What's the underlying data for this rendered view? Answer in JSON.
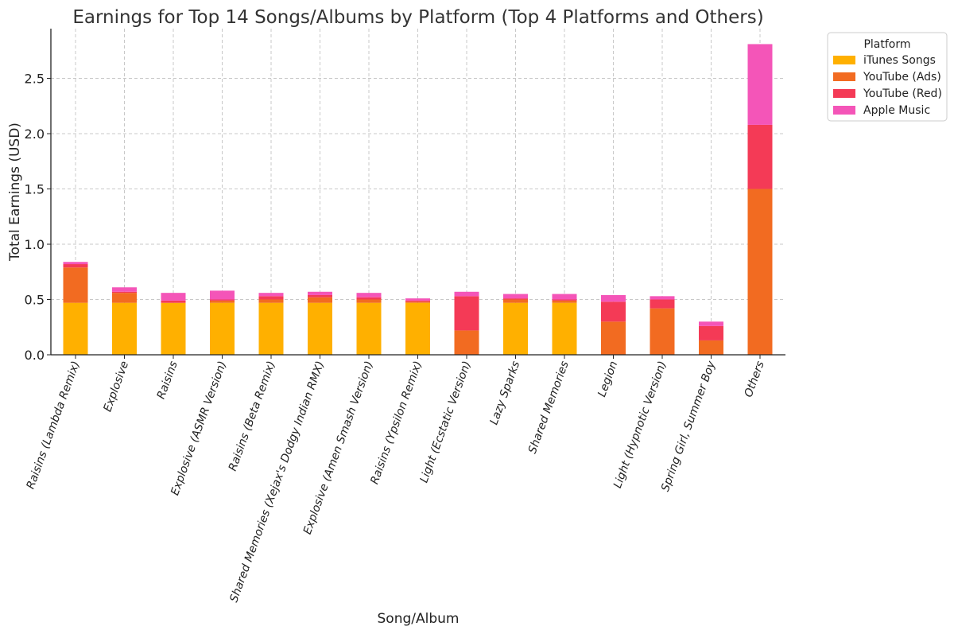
{
  "chart_data": {
    "type": "bar",
    "stacked": true,
    "title": "Earnings for Top 14 Songs/Albums by Platform (Top 4 Platforms and Others)",
    "xlabel": "Song/Album",
    "ylabel": "Total Earnings (USD)",
    "ylim": [
      0,
      2.95
    ],
    "yticks": [
      "0.0",
      "0.5",
      "1.0",
      "1.5",
      "2.0",
      "2.5"
    ],
    "grid": true,
    "legend": {
      "title": "Platform",
      "placement": "outside-top-right"
    },
    "categories": [
      "Raisins (Lambda Remix)",
      "Explosive",
      "Raisins",
      "Explosive (ASMR Version)",
      "Raisins (Beta Remix)",
      "Shared Memories (Xejax's Dodgy Indian RMX)",
      "Explosive (Amen Smash Version)",
      "Raisins (Ypsilon Remix)",
      "Light (Ecstatic Version)",
      "Lazy Sparks",
      "Shared Memories",
      "Legion",
      "Light (Hypnotic Version)",
      "Spring Girl, Summer Boy",
      "Others"
    ],
    "series": [
      {
        "name": "iTunes Songs",
        "color": "#FFB000",
        "values": [
          0.47,
          0.47,
          0.47,
          0.47,
          0.47,
          0.47,
          0.47,
          0.47,
          0.0,
          0.47,
          0.47,
          0.0,
          0.0,
          0.0,
          0.0
        ]
      },
      {
        "name": "YouTube (Ads)",
        "color": "#F26B21",
        "values": [
          0.32,
          0.09,
          0.0,
          0.02,
          0.03,
          0.05,
          0.03,
          0.01,
          0.22,
          0.03,
          0.02,
          0.3,
          0.42,
          0.13,
          1.5
        ]
      },
      {
        "name": "YouTube (Red)",
        "color": "#F43A56",
        "values": [
          0.03,
          0.01,
          0.02,
          0.01,
          0.03,
          0.02,
          0.02,
          0.01,
          0.31,
          0.01,
          0.01,
          0.18,
          0.08,
          0.13,
          0.58
        ]
      },
      {
        "name": "Apple Music",
        "color": "#F455B8",
        "values": [
          0.02,
          0.04,
          0.07,
          0.08,
          0.03,
          0.03,
          0.04,
          0.02,
          0.04,
          0.04,
          0.05,
          0.06,
          0.03,
          0.04,
          0.73
        ]
      }
    ]
  }
}
